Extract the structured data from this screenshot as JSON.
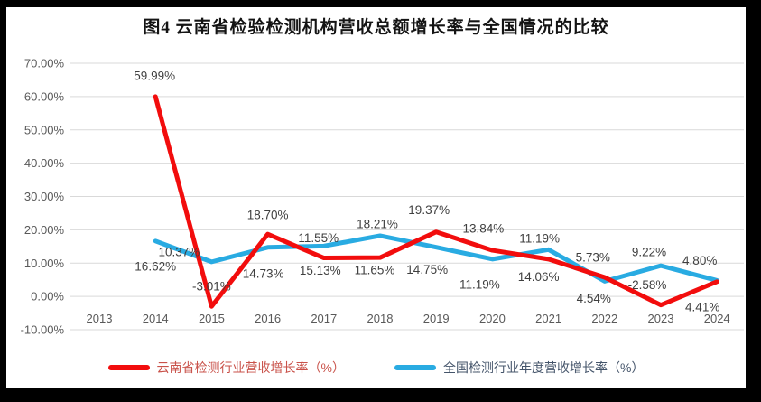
{
  "title": "图4 云南省检验检测机构营收总额增长率与全国情况的比较",
  "colors": {
    "frame": "#000000",
    "background": "#ffffff",
    "grid": "#d9d9d9",
    "axis_text": "#595959",
    "data_label_text": "#3f3f3f",
    "yunnan_line": "#f20d0d",
    "national_line": "#29abe2",
    "legend_text_yunnan": "#c9524a",
    "legend_text_national": "#44546a"
  },
  "chart_data": {
    "type": "line",
    "title": "图4 云南省检验检测机构营收总额增长率与全国情况的比较",
    "xlabel": "",
    "ylabel": "",
    "categories": [
      "2013",
      "2014",
      "2015",
      "2016",
      "2017",
      "2018",
      "2019",
      "2020",
      "2021",
      "2022",
      "2023",
      "2024"
    ],
    "series": [
      {
        "id": "yunnan",
        "name": "云南省检测行业营收增长率（%）",
        "color": "#f20d0d",
        "values": [
          null,
          59.99,
          -3.01,
          18.7,
          11.55,
          11.65,
          19.37,
          13.84,
          11.19,
          5.73,
          -2.58,
          4.41
        ]
      },
      {
        "id": "national",
        "name": "全国检测行业年度营收增长率（%）",
        "color": "#29abe2",
        "values": [
          null,
          16.62,
          10.37,
          14.73,
          15.13,
          18.21,
          14.75,
          11.19,
          14.06,
          4.54,
          9.22,
          4.8
        ]
      }
    ],
    "ylim": [
      -10,
      70
    ],
    "ytick_step": 10,
    "ytick_labels": [
      "-10.00%",
      "0.00%",
      "10.00%",
      "20.00%",
      "30.00%",
      "40.00%",
      "50.00%",
      "60.00%",
      "70.00%"
    ],
    "grid": true,
    "data_labels": true,
    "legend_position": "bottom"
  }
}
